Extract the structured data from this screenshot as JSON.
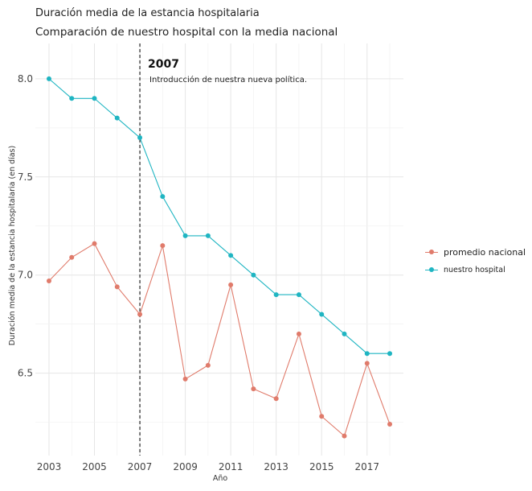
{
  "chart_data": {
    "type": "line",
    "title": "Duración media de la estancia hospitalaria",
    "subtitle": "Comparación de nuestro hospital con la media nacional",
    "xlabel": "Año",
    "ylabel": "Duración media de la estancia hospitalaria (en días)",
    "xlim": [
      2002.4,
      2018.6
    ],
    "ylim": [
      6.08,
      8.18
    ],
    "xticks": [
      2003,
      2005,
      2007,
      2009,
      2011,
      2013,
      2015,
      2017
    ],
    "yticks": [
      6.5,
      7.0,
      7.5,
      8.0
    ],
    "ytick_labels": [
      "6.5",
      "7.0",
      "7.5",
      "8.0"
    ],
    "grid": true,
    "legend_position": "right",
    "x": [
      2003,
      2004,
      2005,
      2006,
      2007,
      2008,
      2009,
      2010,
      2011,
      2012,
      2013,
      2014,
      2015,
      2016,
      2017,
      2018
    ],
    "series": [
      {
        "name": "promedio nacional",
        "color": "#E07B6B",
        "values": [
          6.97,
          7.09,
          7.16,
          6.94,
          6.8,
          7.15,
          6.47,
          6.54,
          6.95,
          6.42,
          6.37,
          6.7,
          6.28,
          6.18,
          6.55,
          6.24
        ]
      },
      {
        "name": "nuestro hospital",
        "color": "#1FB5C2",
        "values": [
          8.0,
          7.9,
          7.9,
          7.8,
          7.7,
          7.4,
          7.2,
          7.2,
          7.1,
          7.0,
          6.9,
          6.9,
          6.8,
          6.7,
          6.6,
          6.6
        ]
      }
    ],
    "annotation": {
      "x": 2007,
      "label": "2007",
      "text": "Introducción de nuestra nueva política."
    }
  }
}
